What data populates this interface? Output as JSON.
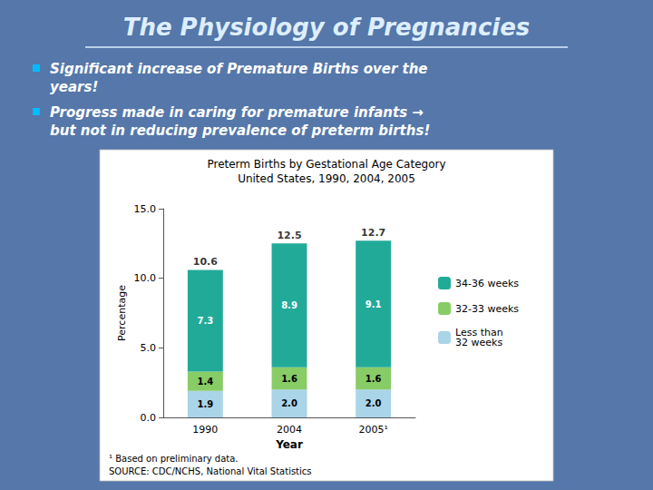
{
  "chart_data": {
    "type": "bar",
    "stacked": true,
    "title": "The Physiology of Pregnancies",
    "annotations": [
      "Significant increase of Premature Births over the\nyears!",
      "Progress made in caring for premature infants →\nbut not in reducing prevalence of preterm births!"
    ],
    "subtitle": "Preterm Births by Gestational Age Category\nUnited States, 1990, 2004, 2005",
    "footnotes": [
      "¹ Based on preliminary data.",
      "SOURCE: CDC/NCHS, National Vital Statistics"
    ],
    "xlabel": "Year",
    "ylabel": "Percentage",
    "categories": [
      "1990",
      "2004",
      "2005¹"
    ],
    "series": [
      {
        "name": "Less than\n32 weeks",
        "color": "#aad4e8",
        "values": [
          1.9,
          2.0,
          2.0
        ],
        "value_labels": [
          "1.9",
          "2.0",
          "2.0"
        ]
      },
      {
        "name": "32-33 weeks",
        "color": "#88cc66",
        "values": [
          1.4,
          1.6,
          1.6
        ]
      },
      {
        "name": "34-36 weeks",
        "color": "#22aa99",
        "values": [
          7.3,
          8.9,
          9.1
        ]
      }
    ],
    "totals": [
      10.6,
      12.5,
      12.7
    ],
    "ylim": [
      0,
      15.0
    ],
    "yticks": [
      {
        "value": 0.0,
        "label": "0.0"
      },
      {
        "value": 5.0,
        "label": "5.0"
      },
      {
        "value": 10.0,
        "label": "10.0"
      },
      {
        "value": 15.0,
        "label": "15.0"
      }
    ],
    "data_labels": true,
    "legend": "right",
    "grid": false
  }
}
